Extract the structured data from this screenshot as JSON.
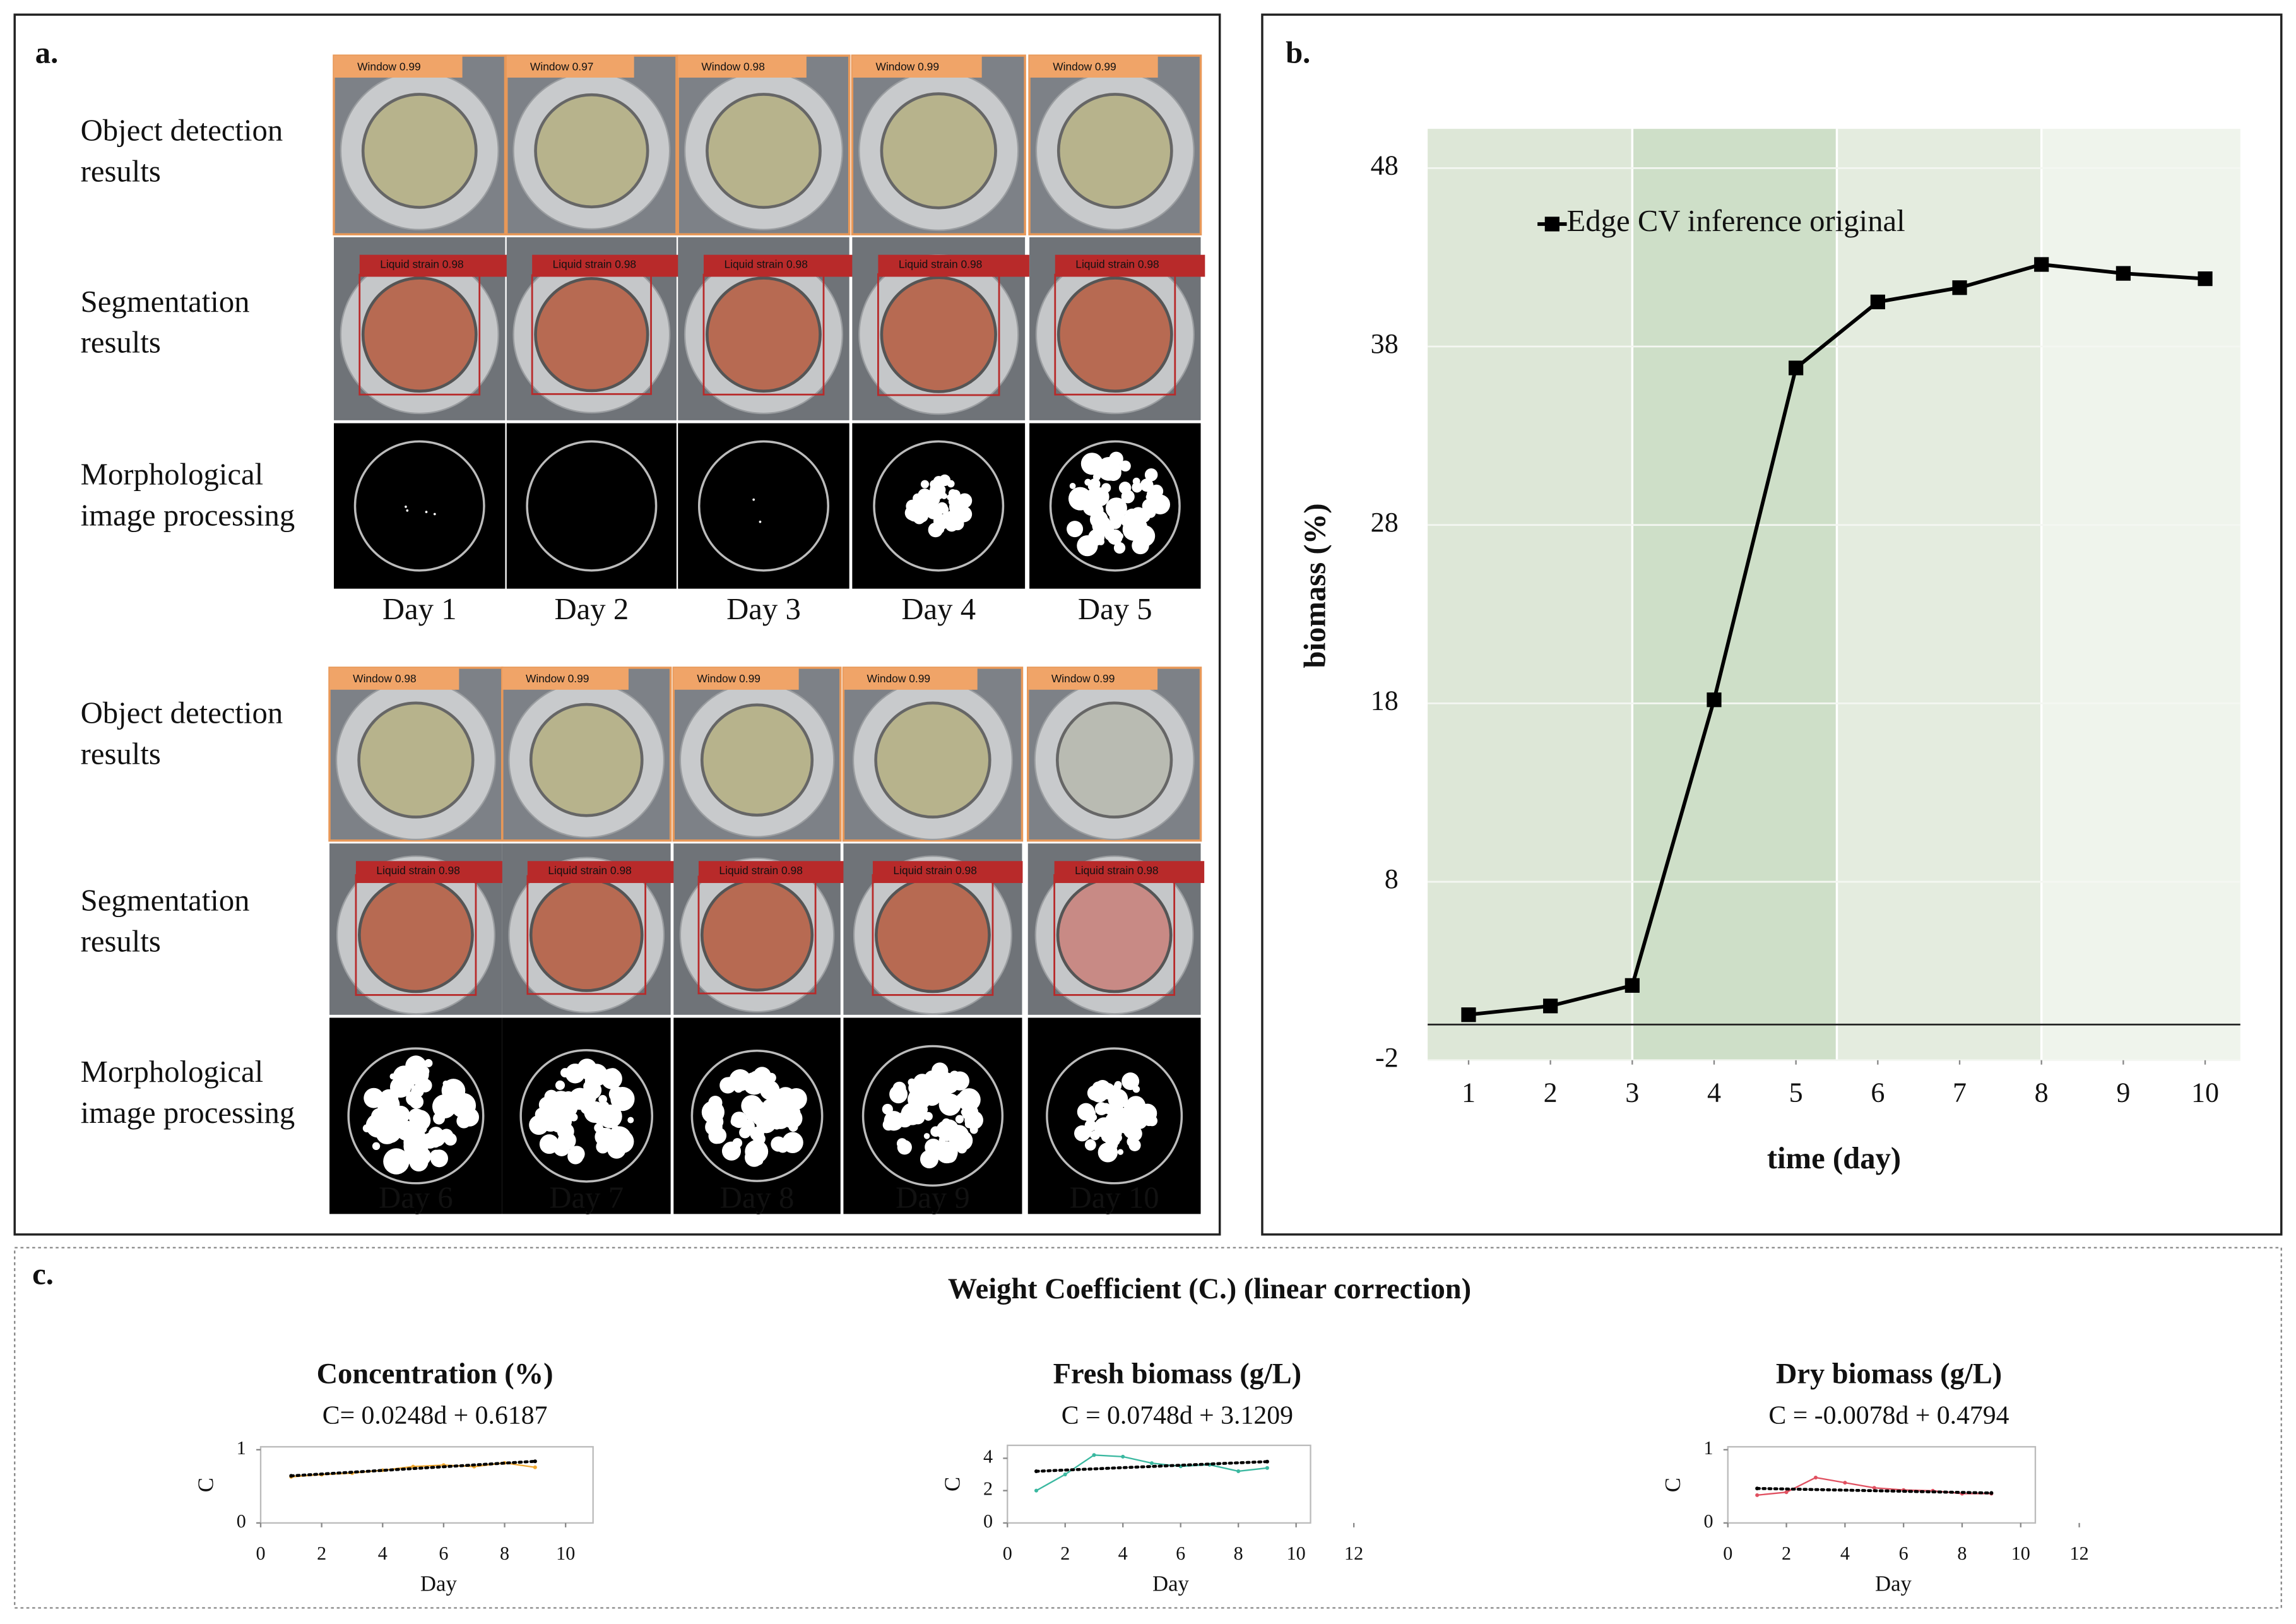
{
  "panel_a": {
    "label": "a.",
    "groups": [
      {
        "row_labels": [
          [
            "Object detection",
            "results"
          ],
          [
            "Segmentation",
            "results"
          ],
          [
            "Morphological",
            "image processing"
          ]
        ],
        "detections": [
          "Window 0.99",
          "Window 0.97",
          "Window 0.98",
          "Window 0.99",
          "Window 0.99"
        ],
        "segmentations": [
          "Liquid strain 0.98",
          "Liquid strain 0.98",
          "Liquid strain 0.98",
          "Liquid strain 0.98",
          "Liquid strain 0.98"
        ],
        "days": [
          "Day 1",
          "Day 2",
          "Day 3",
          "Day 4",
          "Day 5"
        ]
      },
      {
        "row_labels": [
          [
            "Object detection",
            "results"
          ],
          [
            "Segmentation",
            "results"
          ],
          [
            "Morphological",
            "image processing"
          ]
        ],
        "detections": [
          "Window 0.98",
          "Window 0.99",
          "Window 0.99",
          "Window 0.99",
          "Window 0.99"
        ],
        "segmentations": [
          "Liquid strain 0.98",
          "Liquid strain 0.98",
          "Liquid strain 0.98",
          "Liquid strain 0.98",
          "Liquid strain 0.98"
        ],
        "days": [
          "Day 6",
          "Day 7",
          "Day 8",
          "Day 9",
          "Day 10"
        ]
      }
    ]
  },
  "panel_b": {
    "label": "b."
  },
  "panel_c": {
    "label": "c.",
    "title": "Weight Coefficient (C.) (linear correction)"
  },
  "chart_data": [
    {
      "type": "line",
      "x_label": "time (day)",
      "y_label": "biomass (%)",
      "x": [
        1,
        2,
        3,
        4,
        5,
        6,
        7,
        8,
        9,
        10
      ],
      "series": [
        {
          "name": "Edge CV inference original",
          "color": "#000000",
          "values": [
            0.55,
            1.04,
            2.19,
            18.2,
            36.8,
            40.5,
            41.3,
            42.6,
            42.1,
            41.8
          ]
        }
      ],
      "xlim": [
        0.5,
        10.43
      ],
      "xticks": [
        1,
        2,
        3,
        4,
        5,
        6,
        7,
        8,
        9,
        10
      ],
      "ylim": [
        -2,
        50.2
      ],
      "yticks": [
        -2,
        8,
        18,
        28,
        38,
        48
      ],
      "grid": true,
      "legend": "top-left",
      "bands": [
        {
          "from": 0.5,
          "to": 3,
          "color": "#dde7d7"
        },
        {
          "from": 3,
          "to": 5.5,
          "color": "#cedfc8"
        },
        {
          "from": 5.5,
          "to": 8,
          "color": "#e4ecdf"
        },
        {
          "from": 8,
          "to": 10.43,
          "color": "#eff4ec"
        }
      ]
    },
    {
      "type": "line",
      "title": "Concentration (%)",
      "subtitle": "C= 0.0248d + 0.6187",
      "x_label": "Day",
      "y_label": "C",
      "series": [
        {
          "color": "#f0a830",
          "x": [
            1,
            2,
            3,
            4,
            5,
            6,
            7,
            8,
            9
          ],
          "values": [
            0.63,
            0.66,
            0.68,
            0.72,
            0.77,
            0.79,
            0.77,
            0.82,
            0.76
          ]
        },
        {
          "color": "#000000",
          "dotted": true,
          "x": [
            1,
            9
          ],
          "values": [
            0.6435,
            0.8419
          ]
        }
      ],
      "xlim": [
        0,
        10.9
      ],
      "xticks": [
        0,
        2,
        4,
        6,
        8,
        10
      ],
      "ylim": [
        0,
        1.04
      ],
      "yticks": [
        0,
        1
      ]
    },
    {
      "type": "line",
      "title": "Fresh biomass (g/L)",
      "subtitle": "C = 0.0748d + 3.1209",
      "x_label": "Day",
      "y_label": "C",
      "series": [
        {
          "color": "#3ab8a0",
          "x": [
            1,
            2,
            3,
            4,
            5,
            6,
            7,
            8,
            9
          ],
          "values": [
            2.0,
            3.0,
            4.2,
            4.1,
            3.7,
            3.5,
            3.6,
            3.2,
            3.4
          ]
        },
        {
          "color": "#000000",
          "dotted": true,
          "x": [
            1,
            9
          ],
          "values": [
            3.196,
            3.794
          ]
        }
      ],
      "xlim": [
        0,
        10.5
      ],
      "xticks": [
        0,
        2,
        4,
        6,
        8,
        10,
        12
      ],
      "ylim": [
        0,
        4.8
      ],
      "yticks": [
        0,
        2,
        4
      ]
    },
    {
      "type": "line",
      "title": "Dry biomass (g/L)",
      "subtitle": "C = -0.0078d + 0.4794",
      "x_label": "Day",
      "y_label": "C",
      "series": [
        {
          "color": "#e05060",
          "x": [
            1,
            2,
            3,
            4,
            5,
            6,
            7,
            8,
            9
          ],
          "values": [
            0.38,
            0.42,
            0.62,
            0.55,
            0.48,
            0.45,
            0.44,
            0.4,
            0.4
          ]
        },
        {
          "color": "#000000",
          "dotted": true,
          "x": [
            1,
            9
          ],
          "values": [
            0.4716,
            0.4092
          ]
        }
      ],
      "xlim": [
        0,
        10.5
      ],
      "xticks": [
        0,
        2,
        4,
        6,
        8,
        10,
        12
      ],
      "ylim": [
        0,
        1.04
      ],
      "yticks": [
        0,
        1
      ]
    }
  ]
}
